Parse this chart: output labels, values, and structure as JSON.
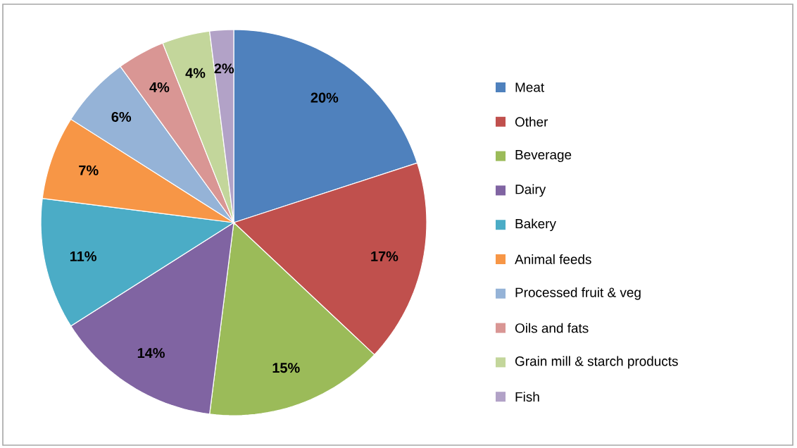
{
  "chart_data": {
    "type": "pie",
    "categories": [
      "Meat",
      "Other",
      "Beverage",
      "Dairy",
      "Bakery",
      "Animal feeds",
      "Processed fruit & veg",
      "Oils and fats",
      "Grain mill & starch products",
      "Fish"
    ],
    "values": [
      20,
      17,
      15,
      14,
      11,
      7,
      6,
      4,
      4,
      2
    ],
    "value_labels": [
      "20%",
      "17%",
      "15%",
      "14%",
      "11%",
      "7%",
      "6%",
      "4%",
      "4%",
      "2%"
    ],
    "colors": [
      "#4f81bd",
      "#c0504d",
      "#9bbb59",
      "#8064a2",
      "#4bacc6",
      "#f79646",
      "#95b3d7",
      "#d99694",
      "#c3d69b",
      "#b2a2c7"
    ],
    "legend": "right"
  }
}
